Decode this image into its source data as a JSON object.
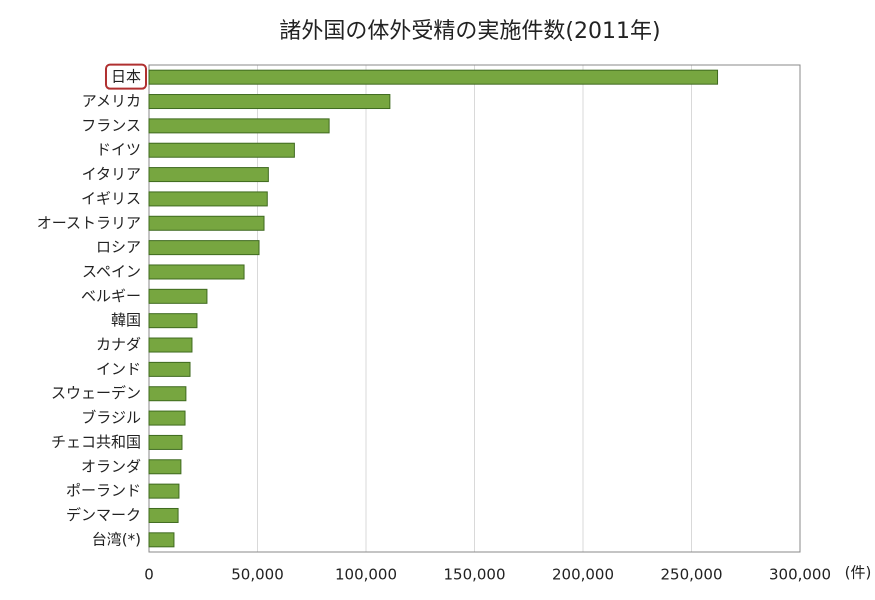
{
  "chart_data": {
    "type": "hbar",
    "title": "諸外国の体外受精の実施件数(2011年)",
    "unit": "(件)",
    "categories": [
      "日本",
      "アメリカ",
      "フランス",
      "ドイツ",
      "イタリア",
      "イギリス",
      "オーストラリア",
      "ロシア",
      "スペイン",
      "ベルギー",
      "韓国",
      "カナダ",
      "インド",
      "スウェーデン",
      "ブラジル",
      "チェコ共和国",
      "オランダ",
      "ポーランド",
      "デンマーク",
      "台湾(*)"
    ],
    "values": [
      262000,
      111000,
      83000,
      67000,
      55000,
      54500,
      53000,
      50700,
      43800,
      26700,
      22100,
      19800,
      18900,
      17000,
      16600,
      15200,
      14700,
      13800,
      13400,
      11500
    ],
    "color": "#77a640",
    "xlim": [
      0,
      300000
    ],
    "xticks": [
      0,
      {
        "value": 50000,
        "label": "50,000"
      },
      {
        "value": 100000,
        "label": "100,000"
      },
      {
        "value": 150000,
        "label": "150,000"
      },
      {
        "value": 200000,
        "label": "200,000"
      },
      {
        "value": 250000,
        "label": "250,000"
      },
      {
        "value": 300000,
        "label": "300,000"
      }
    ],
    "grid": true
  }
}
